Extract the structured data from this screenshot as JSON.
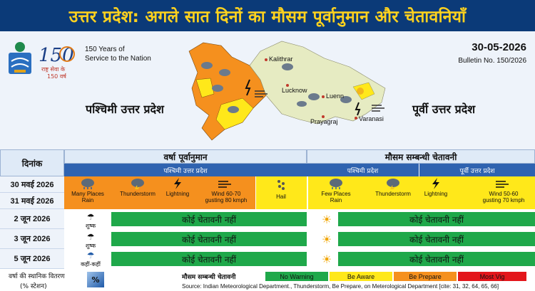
{
  "header": {
    "title": "उत्तर प्रदेश: अगले सात दिनों का मौसम पूर्वानुमान और चेतावनियाँ"
  },
  "branding": {
    "years_line1": "150 Years of",
    "years_line2": "Service to the Nation",
    "logo_text": "राष्ट्र सेवा के 150 वर्ष",
    "logo_number": "150"
  },
  "bulletin": {
    "date": "30-05-2026",
    "number": "Bulletin No. 150/2026"
  },
  "regions": {
    "west": "पश्चिमी उत्तर प्रदेश",
    "east": "पूर्वी उत्तर प्रदेश"
  },
  "map": {
    "cities": [
      "Kalithrar",
      "Lucknow",
      "Luenn",
      "Prayagraj",
      "Varanasi"
    ]
  },
  "table": {
    "date_header": "दिनांक",
    "rain_header": "वर्षा पूर्वानुमान",
    "warning_header": "मौसम सम्बन्धी चेतावनी",
    "rain_sub": "पश्चिमी उत्तर प्रदेश",
    "warn_sub_west": "पश्चिमी प्रदेश",
    "warn_sub_east": "पूर्वी उत्तर प्रदेश",
    "dates": [
      "30 मवई 2026",
      "31 मवई 2026",
      "2 जून 2026",
      "3 जून 2026",
      "5 जून 2026"
    ],
    "west_events": {
      "rain": "Many Places\nRain",
      "thunder": "Thunderstorm",
      "lightning": "Lightning",
      "wind": "Wind 60-70\ngusting 80 kmph",
      "hail": "Hail"
    },
    "east_events": {
      "rain": "Few Places\nRain",
      "thunder": "Thunderstorm",
      "lightning": "Lightning",
      "wind": "Wind 50-60\ngusting 70 kmph"
    },
    "dry_labels": [
      "शुष्क",
      "शुष्क",
      "कहीं-कहीं"
    ],
    "no_warning": "कोई चेतावनी नहीं"
  },
  "footer": {
    "distribution_label": "वर्षा की स्थानिक वितरण",
    "station_label": "(% स्टेशन)",
    "percent_symbol": "%",
    "legend_title": "मौसम सम्बन्धी चेतावनी",
    "legend": [
      {
        "label": "No Warning",
        "color": "#1fa84a"
      },
      {
        "label": "Be Aware",
        "color": "#ffe81a"
      },
      {
        "label": "Be Prepare",
        "color": "#f5901e"
      },
      {
        "label": "Most Vig",
        "color": "#e3161b"
      }
    ],
    "source": "Source: Indian Meteorological Department., Thunderstorm, Be Prepare, on Meterological Department [cite: 31, 32, 64, 65, 66]"
  },
  "colors": {
    "banner": "#0b3a78",
    "title": "#ffd21e",
    "orange": "#f5901e",
    "yellow": "#ffe81a",
    "green": "#1fa84a",
    "subheader": "#2f63b0"
  }
}
